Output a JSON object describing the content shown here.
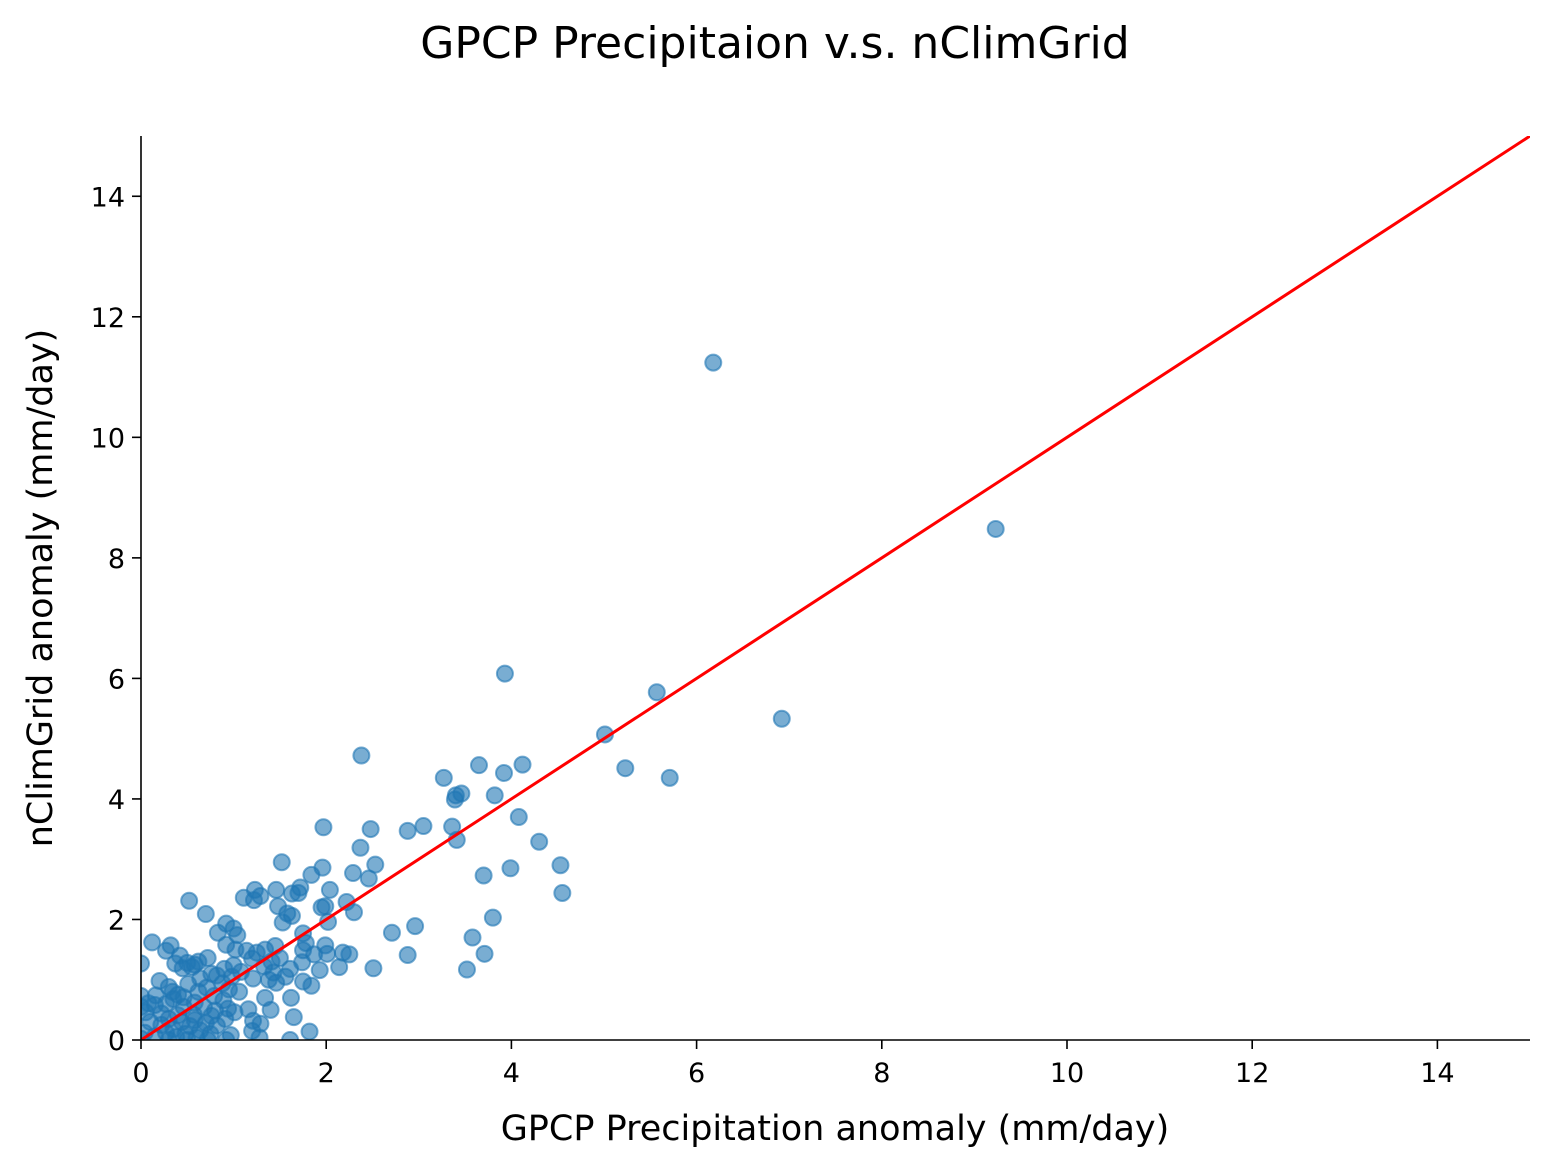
{
  "chart_data": {
    "type": "scatter",
    "title": "GPCP Precipitaion v.s. nClimGrid",
    "xlabel": "GPCP Precipitation anomaly (mm/day)",
    "ylabel": "nClimGrid anomaly (mm/day)",
    "xlim": [
      0,
      15
    ],
    "ylim": [
      0,
      15
    ],
    "xticks": [
      "0",
      "2",
      "4",
      "6",
      "8",
      "10",
      "12",
      "14"
    ],
    "yticks": [
      "0",
      "2",
      "4",
      "6",
      "8",
      "10",
      "12",
      "14"
    ],
    "grid": false,
    "point_color": "#1f77b4",
    "line_color": "#ff0000",
    "reference_line": {
      "x": [
        0,
        15
      ],
      "y": [
        0,
        15
      ]
    },
    "points": [
      [
        6.18,
        11.24
      ],
      [
        9.23,
        8.48
      ],
      [
        3.93,
        6.08
      ],
      [
        5.57,
        5.77
      ],
      [
        6.92,
        5.33
      ],
      [
        5.01,
        5.07
      ],
      [
        2.38,
        4.72
      ],
      [
        3.65,
        4.56
      ],
      [
        4.12,
        4.57
      ],
      [
        5.23,
        4.51
      ],
      [
        3.27,
        4.35
      ],
      [
        5.71,
        4.35
      ],
      [
        3.92,
        4.43
      ],
      [
        3.46,
        4.09
      ],
      [
        3.4,
        4.06
      ],
      [
        3.82,
        4.06
      ],
      [
        3.39,
        3.99
      ],
      [
        4.08,
        3.7
      ],
      [
        3.36,
        3.54
      ],
      [
        3.05,
        3.55
      ],
      [
        2.48,
        3.5
      ],
      [
        1.97,
        3.53
      ],
      [
        2.88,
        3.47
      ],
      [
        3.41,
        3.32
      ],
      [
        4.3,
        3.29
      ],
      [
        2.37,
        3.19
      ],
      [
        1.52,
        2.95
      ],
      [
        4.53,
        2.9
      ],
      [
        2.53,
        2.91
      ],
      [
        1.96,
        2.86
      ],
      [
        3.99,
        2.85
      ],
      [
        2.29,
        2.77
      ],
      [
        1.84,
        2.74
      ],
      [
        3.7,
        2.73
      ],
      [
        2.46,
        2.68
      ],
      [
        1.72,
        2.53
      ],
      [
        1.23,
        2.49
      ],
      [
        2.04,
        2.49
      ],
      [
        1.46,
        2.49
      ],
      [
        1.63,
        2.43
      ],
      [
        1.7,
        2.44
      ],
      [
        4.55,
        2.44
      ],
      [
        1.11,
        2.36
      ],
      [
        1.29,
        2.39
      ],
      [
        1.22,
        2.32
      ],
      [
        0.52,
        2.31
      ],
      [
        1.48,
        2.22
      ],
      [
        2.22,
        2.29
      ],
      [
        1.95,
        2.2
      ],
      [
        1.99,
        2.22
      ],
      [
        2.3,
        2.12
      ],
      [
        0.7,
        2.09
      ],
      [
        1.58,
        2.1
      ],
      [
        1.63,
        2.06
      ],
      [
        3.8,
        2.03
      ],
      [
        1.53,
        1.95
      ],
      [
        2.02,
        1.96
      ],
      [
        0.92,
        1.93
      ],
      [
        2.96,
        1.89
      ],
      [
        1.0,
        1.85
      ],
      [
        1.75,
        1.77
      ],
      [
        0.83,
        1.78
      ],
      [
        2.71,
        1.78
      ],
      [
        1.04,
        1.74
      ],
      [
        3.58,
        1.7
      ],
      [
        0.12,
        1.62
      ],
      [
        1.78,
        1.61
      ],
      [
        0.32,
        1.57
      ],
      [
        0.92,
        1.58
      ],
      [
        1.99,
        1.57
      ],
      [
        1.45,
        1.56
      ],
      [
        1.02,
        1.5
      ],
      [
        1.75,
        1.49
      ],
      [
        0.27,
        1.48
      ],
      [
        1.14,
        1.48
      ],
      [
        1.34,
        1.5
      ],
      [
        1.25,
        1.45
      ],
      [
        2.18,
        1.45
      ],
      [
        2.01,
        1.43
      ],
      [
        1.87,
        1.42
      ],
      [
        2.25,
        1.42
      ],
      [
        0.42,
        1.4
      ],
      [
        3.71,
        1.43
      ],
      [
        2.88,
        1.41
      ],
      [
        0.72,
        1.36
      ],
      [
        1.2,
        1.35
      ],
      [
        1.5,
        1.36
      ],
      [
        1.41,
        1.3
      ],
      [
        0.62,
        1.3
      ],
      [
        0.37,
        1.27
      ],
      [
        0.5,
        1.28
      ],
      [
        1.74,
        1.29
      ],
      [
        0.0,
        1.27
      ],
      [
        0.58,
        1.25
      ],
      [
        1.0,
        1.24
      ],
      [
        0.55,
        1.21
      ],
      [
        1.33,
        1.22
      ],
      [
        2.14,
        1.21
      ],
      [
        1.61,
        1.18
      ],
      [
        1.93,
        1.16
      ],
      [
        0.45,
        1.19
      ],
      [
        0.9,
        1.18
      ],
      [
        2.51,
        1.19
      ],
      [
        3.52,
        1.17
      ],
      [
        1.43,
        1.12
      ],
      [
        1.08,
        1.13
      ],
      [
        0.76,
        1.1
      ],
      [
        0.82,
        1.07
      ],
      [
        0.98,
        1.05
      ],
      [
        1.21,
        1.02
      ],
      [
        1.56,
        1.05
      ],
      [
        0.64,
        1.02
      ],
      [
        1.38,
        1.0
      ],
      [
        1.75,
        0.97
      ],
      [
        0.2,
        0.98
      ],
      [
        1.46,
        0.95
      ],
      [
        0.88,
        0.94
      ],
      [
        1.84,
        0.9
      ],
      [
        0.51,
        0.93
      ],
      [
        0.3,
        0.88
      ],
      [
        0.71,
        0.87
      ],
      [
        0.95,
        0.84
      ],
      [
        0.34,
        0.8
      ],
      [
        0.62,
        0.8
      ],
      [
        1.06,
        0.8
      ],
      [
        0.4,
        0.75
      ],
      [
        0.16,
        0.74
      ],
      [
        0.79,
        0.73
      ],
      [
        0.0,
        0.73
      ],
      [
        1.62,
        0.7
      ],
      [
        0.46,
        0.71
      ],
      [
        1.34,
        0.7
      ],
      [
        0.35,
        0.68
      ],
      [
        0.89,
        0.66
      ],
      [
        0.58,
        0.62
      ],
      [
        0.08,
        0.61
      ],
      [
        0.27,
        0.6
      ],
      [
        0.15,
        0.58
      ],
      [
        0.0,
        0.55
      ],
      [
        0.46,
        0.55
      ],
      [
        0.68,
        0.55
      ],
      [
        0.94,
        0.52
      ],
      [
        1.16,
        0.51
      ],
      [
        0.8,
        0.49
      ],
      [
        1.4,
        0.5
      ],
      [
        0.05,
        0.46
      ],
      [
        0.22,
        0.44
      ],
      [
        0.4,
        0.41
      ],
      [
        0.57,
        0.42
      ],
      [
        1.01,
        0.46
      ],
      [
        0.76,
        0.4
      ],
      [
        1.65,
        0.38
      ],
      [
        0.3,
        0.35
      ],
      [
        0.58,
        0.33
      ],
      [
        0.91,
        0.35
      ],
      [
        1.21,
        0.32
      ],
      [
        0.1,
        0.3
      ],
      [
        0.44,
        0.3
      ],
      [
        0.7,
        0.28
      ],
      [
        1.29,
        0.27
      ],
      [
        0.22,
        0.25
      ],
      [
        0.53,
        0.23
      ],
      [
        0.82,
        0.24
      ],
      [
        0.35,
        0.18
      ],
      [
        0.64,
        0.16
      ],
      [
        1.2,
        0.15
      ],
      [
        1.82,
        0.14
      ],
      [
        0.04,
        0.12
      ],
      [
        0.27,
        0.12
      ],
      [
        0.48,
        0.1
      ],
      [
        0.75,
        0.1
      ],
      [
        0.97,
        0.08
      ],
      [
        0.15,
        0.06
      ],
      [
        0.38,
        0.05
      ],
      [
        0.6,
        0.04
      ],
      [
        1.28,
        0.04
      ],
      [
        0.0,
        0.02
      ],
      [
        0.3,
        0.0
      ],
      [
        0.5,
        0.0
      ],
      [
        0.72,
        0.0
      ],
      [
        0.92,
        0.0
      ],
      [
        1.61,
        0.0
      ]
    ]
  }
}
